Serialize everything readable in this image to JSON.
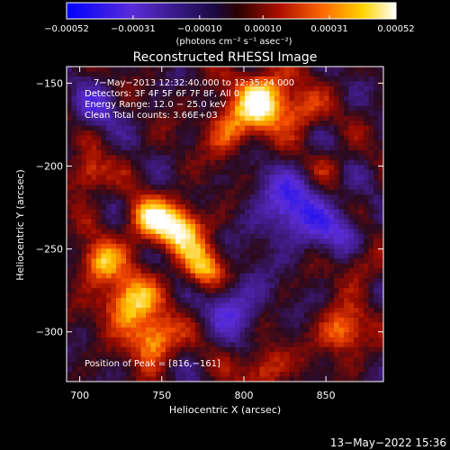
{
  "chart_data": {
    "type": "heatmap",
    "title": "Reconstructed RHESSI Image",
    "xlabel": "Heliocentric X (arcsec)",
    "ylabel": "Heliocentric Y (arcsec)",
    "xlim": [
      692,
      885
    ],
    "ylim": [
      -330,
      -140
    ],
    "x_ticks": [
      {
        "value": 700,
        "label": "700"
      },
      {
        "value": 750,
        "label": "750"
      },
      {
        "value": 800,
        "label": "800"
      },
      {
        "value": 850,
        "label": "850"
      }
    ],
    "y_ticks": [
      {
        "value": -150,
        "label": "−150"
      },
      {
        "value": -200,
        "label": "−200"
      },
      {
        "value": -250,
        "label": "−250"
      },
      {
        "value": -300,
        "label": "−300"
      }
    ],
    "colorbar": {
      "range": [
        -0.00052,
        0.00052
      ],
      "ticks": [
        {
          "value": -0.00052,
          "label": "−0.00052"
        },
        {
          "value": -0.00031,
          "label": "−0.00031"
        },
        {
          "value": -0.0001,
          "label": "−0.00010"
        },
        {
          "value": 0.0001,
          "label": "0.00010"
        },
        {
          "value": 0.00031,
          "label": "0.00031"
        },
        {
          "value": 0.00052,
          "label": "0.00052"
        }
      ],
      "unit_label": "(photons cm⁻² s⁻¹ asec⁻²)"
    },
    "info_lines": [
      "7−May−2013 12:32:40.000 to 12:35:24.000",
      "Detectors: 3F 4F 5F 6F 7F 8F, All 0",
      "Energy Range: 12.0 − 25.0 keV",
      "Clean     Total counts: 3.66E+03"
    ],
    "peak_label": "Position of Peak = [816,−161]",
    "peak": [
      816,
      -161
    ],
    "hotspots": [
      {
        "x": 812,
        "y": -160,
        "amp": 1.0,
        "s": 12
      },
      {
        "x": 790,
        "y": -178,
        "amp": 0.55,
        "s": 10
      },
      {
        "x": 835,
        "y": -168,
        "amp": 0.45,
        "s": 9
      },
      {
        "x": 760,
        "y": -238,
        "amp": 0.9,
        "s": 11
      },
      {
        "x": 740,
        "y": -232,
        "amp": 0.7,
        "s": 9
      },
      {
        "x": 775,
        "y": -262,
        "amp": 0.7,
        "s": 9
      },
      {
        "x": 730,
        "y": -282,
        "amp": 0.9,
        "s": 11
      },
      {
        "x": 712,
        "y": -258,
        "amp": 0.75,
        "s": 9
      },
      {
        "x": 745,
        "y": -305,
        "amp": 0.8,
        "s": 10
      },
      {
        "x": 705,
        "y": -205,
        "amp": 0.6,
        "s": 8
      },
      {
        "x": 860,
        "y": -300,
        "amp": 0.65,
        "s": 10
      },
      {
        "x": 870,
        "y": -260,
        "amp": 0.4,
        "s": 8
      },
      {
        "x": 812,
        "y": -322,
        "amp": 0.55,
        "s": 9
      },
      {
        "x": 850,
        "y": -200,
        "amp": 0.3,
        "s": 8
      }
    ],
    "coldspots": [
      {
        "x": 830,
        "y": -225,
        "amp": 0.65,
        "s": 16
      },
      {
        "x": 795,
        "y": -285,
        "amp": 0.5,
        "s": 12
      },
      {
        "x": 710,
        "y": -165,
        "amp": 0.4,
        "s": 10
      },
      {
        "x": 860,
        "y": -240,
        "amp": 0.4,
        "s": 10
      }
    ]
  },
  "footer": {
    "date": "13−May−2022 15:36"
  },
  "colors": {
    "background": "#000000",
    "text": "#ffffff"
  }
}
